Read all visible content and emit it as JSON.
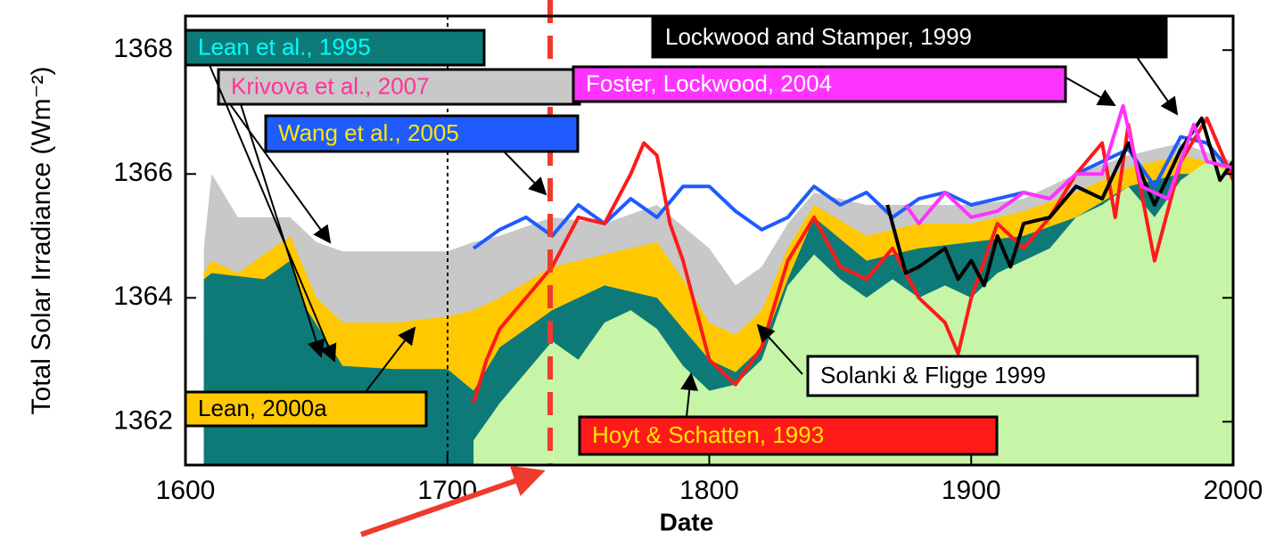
{
  "chart_data": {
    "type": "line",
    "xlabel": "Date",
    "ylabel": "Total  Solar Irradiance  (Wm⁻²)",
    "xlim": [
      1600,
      2000
    ],
    "ylim": [
      1361.3,
      1368.55
    ],
    "xticks": [
      1600,
      1700,
      1800,
      1900,
      2000
    ],
    "yticks": [
      1362,
      1364,
      1366,
      1368
    ],
    "series": [
      {
        "name": "Krivova et al., 2007",
        "color": "#c8c8c8",
        "style": "area",
        "x": [
          1607,
          1610,
          1620,
          1640,
          1650,
          1660,
          1700,
          1710,
          1720,
          1740,
          1760,
          1780,
          1800,
          1810,
          1820,
          1830,
          1840,
          1860,
          1880,
          1900,
          1920,
          1940,
          1960,
          1980,
          2000
        ],
        "values": [
          1364.8,
          1366.0,
          1365.3,
          1365.3,
          1364.9,
          1364.75,
          1364.75,
          1364.9,
          1365.0,
          1365.3,
          1365.2,
          1365.5,
          1364.8,
          1364.2,
          1364.5,
          1365.2,
          1365.7,
          1365.5,
          1365.5,
          1365.5,
          1365.6,
          1366.0,
          1366.3,
          1366.5,
          1366.2
        ]
      },
      {
        "name": "Lean, 2000a",
        "color": "#ffc800",
        "style": "area",
        "x": [
          1607,
          1610,
          1620,
          1630,
          1640,
          1650,
          1660,
          1680,
          1700,
          1710,
          1720,
          1740,
          1760,
          1780,
          1790,
          1800,
          1810,
          1820,
          1830,
          1840,
          1860,
          1880,
          1900,
          1920,
          1940,
          1960,
          1980,
          2000
        ],
        "values": [
          1364.4,
          1364.6,
          1364.4,
          1364.7,
          1365.0,
          1364.0,
          1363.6,
          1363.6,
          1363.7,
          1363.8,
          1364.0,
          1364.5,
          1364.7,
          1364.9,
          1364.3,
          1363.6,
          1363.4,
          1363.8,
          1364.8,
          1365.5,
          1365.0,
          1365.2,
          1365.2,
          1365.4,
          1365.7,
          1366.1,
          1366.3,
          1366.1
        ]
      },
      {
        "name": "Lean et al., 1995",
        "color": "#0e7a78",
        "style": "area",
        "x": [
          1607,
          1610,
          1630,
          1640,
          1645,
          1660,
          1680,
          1700,
          1710,
          1720,
          1740,
          1760,
          1780,
          1790,
          1800,
          1810,
          1820,
          1830,
          1840,
          1860,
          1880,
          1900,
          1920,
          1940,
          1960,
          1980,
          2000
        ],
        "values": [
          1364.3,
          1364.4,
          1364.3,
          1364.6,
          1363.9,
          1362.9,
          1362.85,
          1362.85,
          1362.5,
          1363.2,
          1363.8,
          1364.2,
          1364.0,
          1363.5,
          1363.0,
          1362.8,
          1363.2,
          1364.3,
          1365.3,
          1364.6,
          1364.8,
          1364.9,
          1365.0,
          1365.3,
          1365.8,
          1366.0,
          1366.0
        ]
      },
      {
        "name": "Solanki & Fligge 1999",
        "color": "#c6f5a8",
        "style": "area",
        "x": [
          1710,
          1720,
          1730,
          1740,
          1750,
          1760,
          1770,
          1780,
          1790,
          1800,
          1810,
          1820,
          1830,
          1840,
          1850,
          1860,
          1870,
          1880,
          1890,
          1900,
          1910,
          1920,
          1930,
          1940,
          1950,
          1960,
          1970,
          1980,
          1990,
          2000
        ],
        "values": [
          1361.7,
          1362.3,
          1362.8,
          1363.3,
          1363.0,
          1363.6,
          1363.8,
          1363.5,
          1362.9,
          1362.5,
          1362.6,
          1363.0,
          1364.2,
          1364.7,
          1364.3,
          1364.0,
          1364.3,
          1364.0,
          1364.2,
          1364.0,
          1364.4,
          1364.6,
          1364.8,
          1365.3,
          1365.5,
          1365.8,
          1365.3,
          1365.9,
          1366.2,
          1366.0
        ]
      },
      {
        "name": "Wang et al., 2005",
        "color": "#1f5bff",
        "style": "line",
        "x": [
          1710,
          1720,
          1730,
          1740,
          1750,
          1760,
          1770,
          1780,
          1790,
          1800,
          1810,
          1820,
          1830,
          1840,
          1850,
          1860,
          1870,
          1880,
          1890,
          1900,
          1910,
          1920,
          1930,
          1940,
          1950,
          1960,
          1970,
          1980,
          1990,
          2000
        ],
        "values": [
          1364.8,
          1365.1,
          1365.3,
          1365.0,
          1365.5,
          1365.2,
          1365.6,
          1365.3,
          1365.8,
          1365.8,
          1365.4,
          1365.1,
          1365.3,
          1365.8,
          1365.5,
          1365.7,
          1365.3,
          1365.6,
          1365.7,
          1365.5,
          1365.6,
          1365.7,
          1365.6,
          1366.0,
          1366.2,
          1366.4,
          1365.8,
          1366.6,
          1366.5,
          1366.0
        ]
      },
      {
        "name": "Hoyt & Schatten, 1993",
        "color": "#ff1a1a",
        "style": "line",
        "x": [
          1710,
          1715,
          1720,
          1730,
          1740,
          1750,
          1760,
          1770,
          1775,
          1780,
          1785,
          1790,
          1800,
          1810,
          1820,
          1830,
          1840,
          1850,
          1860,
          1870,
          1880,
          1890,
          1895,
          1900,
          1910,
          1920,
          1930,
          1940,
          1950,
          1955,
          1960,
          1970,
          1980,
          1990,
          2000
        ],
        "values": [
          1362.3,
          1363.0,
          1363.5,
          1364.0,
          1364.5,
          1365.3,
          1365.2,
          1366.0,
          1366.5,
          1366.3,
          1365.2,
          1364.6,
          1363.0,
          1362.6,
          1363.2,
          1364.6,
          1365.3,
          1364.5,
          1364.3,
          1364.8,
          1364.0,
          1363.6,
          1363.1,
          1364.0,
          1365.2,
          1364.8,
          1365.3,
          1366.0,
          1366.5,
          1365.3,
          1366.8,
          1364.6,
          1366.2,
          1366.9,
          1365.9
        ]
      },
      {
        "name": "Lockwood and Stamper, 1999",
        "color": "#000000",
        "style": "line",
        "x": [
          1868,
          1875,
          1880,
          1890,
          1895,
          1900,
          1905,
          1910,
          1915,
          1920,
          1930,
          1940,
          1950,
          1960,
          1970,
          1980,
          1988,
          1995,
          2000
        ],
        "values": [
          1365.5,
          1364.4,
          1364.5,
          1364.8,
          1364.3,
          1364.6,
          1364.2,
          1365.0,
          1364.5,
          1365.2,
          1365.3,
          1365.8,
          1365.6,
          1366.5,
          1365.5,
          1366.4,
          1366.9,
          1365.9,
          1366.2
        ]
      },
      {
        "name": "Foster,  Lockwood, 2004",
        "color": "#ff33ff",
        "style": "line",
        "x": [
          1875,
          1880,
          1890,
          1900,
          1910,
          1920,
          1930,
          1940,
          1950,
          1958,
          1965,
          1975,
          1985,
          1990,
          2000
        ],
        "values": [
          1365.5,
          1365.2,
          1365.7,
          1365.3,
          1365.4,
          1365.7,
          1365.6,
          1366.0,
          1366.0,
          1367.1,
          1365.8,
          1365.6,
          1366.8,
          1366.2,
          1366.1
        ]
      }
    ]
  }
}
